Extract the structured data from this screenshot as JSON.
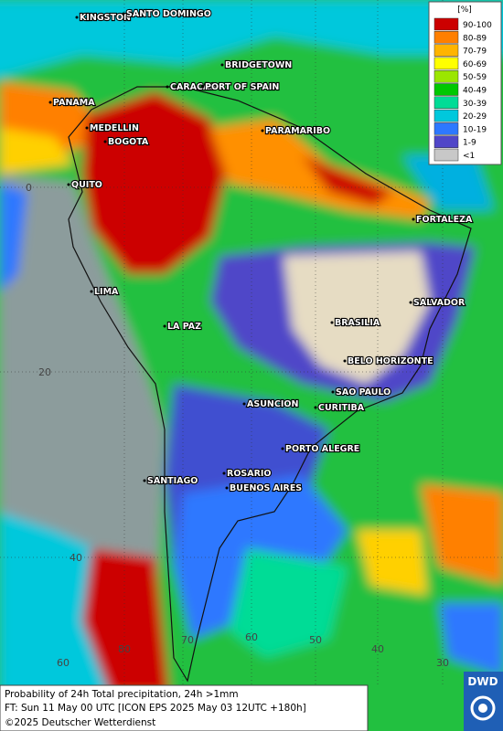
{
  "legend": {
    "title": "[%]",
    "items": [
      {
        "label": "90-100",
        "color": "#cc0000"
      },
      {
        "label": "80-89",
        "color": "#ff7f00"
      },
      {
        "label": "70-79",
        "color": "#ffb400"
      },
      {
        "label": "60-69",
        "color": "#ffff00"
      },
      {
        "label": "50-59",
        "color": "#9be600"
      },
      {
        "label": "40-49",
        "color": "#00c800"
      },
      {
        "label": "30-39",
        "color": "#00dc96"
      },
      {
        "label": "20-29",
        "color": "#00c8dc"
      },
      {
        "label": "10-19",
        "color": "#2d78ff"
      },
      {
        "label": "1-9",
        "color": "#5046c8"
      },
      {
        "label": "<1",
        "color": "#c8c8c8"
      }
    ]
  },
  "places": [
    "KINGSTON",
    "SANTO DOMINGO",
    "BRIDGETOWN",
    "PANAMA",
    "CARACAS",
    "PORT OF SPAIN",
    "MEDELLIN",
    "BOGOTA",
    "PARAMARIBO",
    "QUITO",
    "FORTALEZA",
    "LIMA",
    "SALVADOR",
    "BRASILIA",
    "LA PAZ",
    "BELO HORIZONTE",
    "SAO PAULO",
    "ASUNCION",
    "CURITIBA",
    "PORTO ALEGRE",
    "ROSARIO",
    "BUENOS AIRES",
    "SANTIAGO"
  ],
  "grid_labels": {
    "lat": [
      "0",
      "20",
      "40",
      "60"
    ],
    "lon": [
      "80",
      "70",
      "60",
      "50",
      "40",
      "30"
    ]
  },
  "footer": {
    "lines": [
      "Probability of 24h Total precipitation, 24h >1mm",
      "FT: Sun 11 May 00 UTC [ICON EPS 2025 May 03 12UTC +180h]",
      "©2025 Deutscher Wetterdienst"
    ]
  },
  "logo": "DWD"
}
